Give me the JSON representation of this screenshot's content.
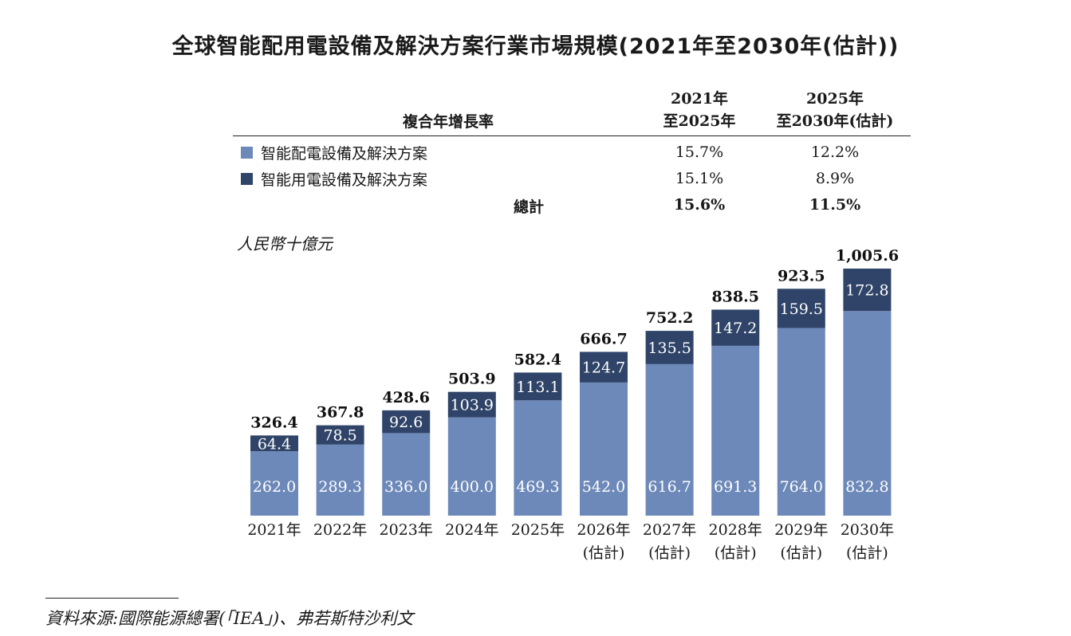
{
  "title": "全球智能配用電設備及解決方案行業市場規模(2021年至2030年(估計))",
  "cagr_table": {
    "header_label": "複合年增長率",
    "col1_header": [
      "2021年",
      "至2025年"
    ],
    "col2_header": [
      "2025年",
      "至2030年(估計)"
    ],
    "rows": [
      {
        "label": "智能配電設備及解決方案",
        "v1": "15.7%",
        "v2": "12.2%"
      },
      {
        "label": "智能用電設備及解決方案",
        "v1": "15.1%",
        "v2": "8.9%"
      }
    ],
    "total": {
      "label": "總計",
      "v1": "15.6%",
      "v2": "11.5%"
    }
  },
  "unit_label": "人民幣十億元",
  "colors": {
    "distribution": "#6d89b9",
    "consumption": "#2f4468"
  },
  "chart_data": {
    "type": "bar",
    "stacked": true,
    "categories": [
      [
        "2021年"
      ],
      [
        "2022年"
      ],
      [
        "2023年"
      ],
      [
        "2024年"
      ],
      [
        "2025年"
      ],
      [
        "2026年",
        "(估計)"
      ],
      [
        "2027年",
        "(估計)"
      ],
      [
        "2028年",
        "(估計)"
      ],
      [
        "2029年",
        "(估計)"
      ],
      [
        "2030年",
        "(估計)"
      ]
    ],
    "series": [
      {
        "name": "智能配電設備及解決方案",
        "values": [
          262.0,
          289.3,
          336.0,
          400.0,
          469.3,
          542.0,
          616.7,
          691.3,
          764.0,
          832.8
        ],
        "labels": [
          "262.0",
          "289.3",
          "336.0",
          "400.0",
          "469.3",
          "542.0",
          "616.7",
          "691.3",
          "764.0",
          "832.8"
        ]
      },
      {
        "name": "智能用電設備及解決方案",
        "values": [
          64.4,
          78.5,
          92.6,
          103.9,
          113.1,
          124.7,
          135.5,
          147.2,
          159.5,
          172.8
        ],
        "labels": [
          "64.4",
          "78.5",
          "92.6",
          "103.9",
          "113.1",
          "124.7",
          "135.5",
          "147.2",
          "159.5",
          "172.8"
        ]
      }
    ],
    "totals": [
      326.4,
      367.8,
      428.6,
      503.9,
      582.4,
      666.7,
      752.2,
      838.5,
      923.5,
      1005.6
    ],
    "total_labels": [
      "326.4",
      "367.8",
      "428.6",
      "503.9",
      "582.4",
      "666.7",
      "752.2",
      "838.5",
      "923.5",
      "1,005.6"
    ],
    "ylabel": "人民幣十億元",
    "ylim": [
      0,
      1005.6
    ],
    "grid": false,
    "legend": "table above chart"
  },
  "source": "資料來源:國際能源總署(「IEA」)、弗若斯特沙利文"
}
